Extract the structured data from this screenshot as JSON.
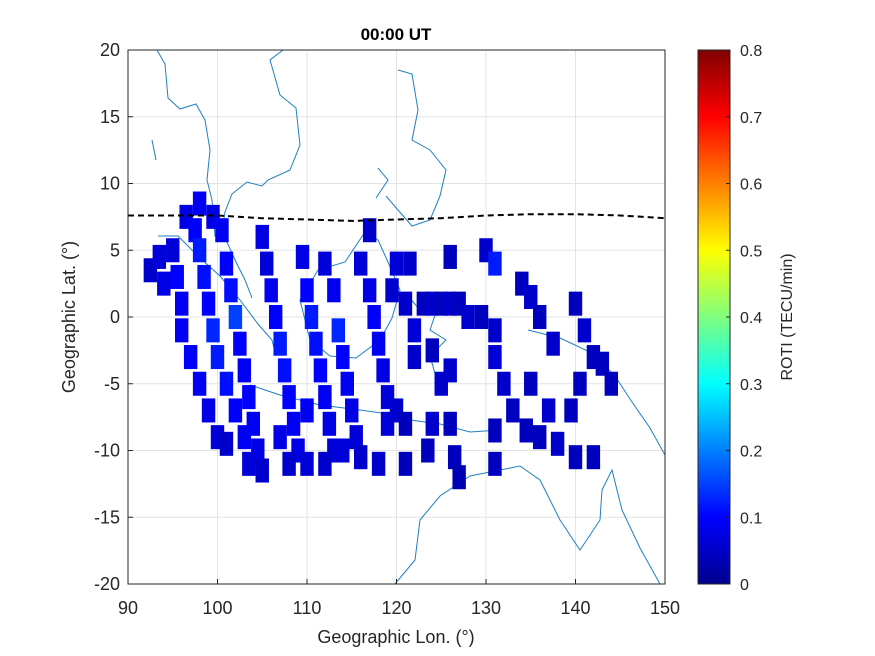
{
  "chart_data": {
    "type": "heatmap",
    "title": "00:00 UT",
    "xlabel": "Geographic Lon. (°)",
    "ylabel": "Geographic Lat. (°)",
    "xlim": [
      90,
      150
    ],
    "ylim": [
      -20,
      20
    ],
    "xticks": [
      "90",
      "100",
      "110",
      "120",
      "130",
      "140",
      "150"
    ],
    "yticks": [
      "20",
      "15",
      "10",
      "5",
      "0",
      "-5",
      "-10",
      "-15",
      "-20"
    ],
    "grid": true,
    "colorbar": {
      "label": "ROTI (TECU/min)",
      "range": [
        0,
        0.8
      ],
      "ticks": [
        "0.8",
        "0.7",
        "0.6",
        "0.5",
        "0.4",
        "0.3",
        "0.2",
        "0.1",
        "0"
      ],
      "colormap": "jet"
    },
    "magnetic_equator": {
      "style": "dashed",
      "color": "#000000",
      "lon": [
        90,
        95,
        100,
        105,
        110,
        115,
        120,
        125,
        130,
        135,
        140,
        145,
        150
      ],
      "lat": [
        7.6,
        7.6,
        7.6,
        7.4,
        7.3,
        7.2,
        7.3,
        7.4,
        7.6,
        7.7,
        7.7,
        7.6,
        7.4
      ]
    },
    "coastline_color": "#1f7fbf",
    "roti_cells": [
      [
        92.5,
        3.5,
        0.06
      ],
      [
        93.5,
        4.5,
        0.07
      ],
      [
        94,
        2.5,
        0.08
      ],
      [
        95,
        5,
        0.07
      ],
      [
        95.5,
        3,
        0.1
      ],
      [
        96,
        1,
        0.09
      ],
      [
        96.5,
        7.5,
        0.08
      ],
      [
        97.5,
        6.5,
        0.1
      ],
      [
        98,
        5,
        0.12
      ],
      [
        98.5,
        3,
        0.11
      ],
      [
        99,
        1,
        0.1
      ],
      [
        99.5,
        -1,
        0.13
      ],
      [
        98,
        8.5,
        0.09
      ],
      [
        99.5,
        7.5,
        0.08
      ],
      [
        100.5,
        6.5,
        0.09
      ],
      [
        101,
        4,
        0.1
      ],
      [
        101.5,
        2,
        0.11
      ],
      [
        102,
        0,
        0.15
      ],
      [
        102.5,
        -2,
        0.1
      ],
      [
        103,
        -4,
        0.09
      ],
      [
        103.5,
        -6,
        0.1
      ],
      [
        104,
        -8,
        0.09
      ],
      [
        104.5,
        -10,
        0.08
      ],
      [
        105,
        6,
        0.08
      ],
      [
        105.5,
        4,
        0.07
      ],
      [
        106,
        2,
        0.09
      ],
      [
        106.5,
        0,
        0.1
      ],
      [
        107,
        -2,
        0.12
      ],
      [
        107.5,
        -4,
        0.11
      ],
      [
        108,
        -6,
        0.1
      ],
      [
        108.5,
        -8,
        0.09
      ],
      [
        109,
        -10,
        0.08
      ],
      [
        100,
        -3,
        0.12
      ],
      [
        101,
        -5,
        0.11
      ],
      [
        102,
        -7,
        0.1
      ],
      [
        103,
        -9,
        0.09
      ],
      [
        103.5,
        -11,
        0.07
      ],
      [
        105,
        -11.5,
        0.06
      ],
      [
        96,
        -1,
        0.09
      ],
      [
        97,
        -3,
        0.1
      ],
      [
        98,
        -5,
        0.09
      ],
      [
        99,
        -7,
        0.08
      ],
      [
        100,
        -9,
        0.07
      ],
      [
        101,
        -9.5,
        0.06
      ],
      [
        109.5,
        4.5,
        0.08
      ],
      [
        110,
        2,
        0.1
      ],
      [
        110.5,
        0,
        0.12
      ],
      [
        111,
        -2,
        0.11
      ],
      [
        111.5,
        -4,
        0.1
      ],
      [
        112,
        -6,
        0.09
      ],
      [
        112.5,
        -8,
        0.08
      ],
      [
        113,
        -10,
        0.07
      ],
      [
        112,
        4,
        0.07
      ],
      [
        113,
        2,
        0.09
      ],
      [
        113.5,
        -1,
        0.13
      ],
      [
        114,
        -3,
        0.1
      ],
      [
        114.5,
        -5,
        0.09
      ],
      [
        115,
        -7,
        0.08
      ],
      [
        115.5,
        -9,
        0.07
      ],
      [
        116,
        -10.5,
        0.06
      ],
      [
        116,
        4,
        0.07
      ],
      [
        117,
        6.5,
        0.06
      ],
      [
        117,
        2,
        0.08
      ],
      [
        117.5,
        0,
        0.1
      ],
      [
        118,
        -2,
        0.09
      ],
      [
        118.5,
        -4,
        0.08
      ],
      [
        119,
        -6,
        0.07
      ],
      [
        119,
        -8,
        0.07
      ],
      [
        120,
        -7,
        0.06
      ],
      [
        121,
        -8,
        0.05
      ],
      [
        119.5,
        2,
        0.06
      ],
      [
        120,
        4,
        0.07
      ],
      [
        121,
        1,
        0.06
      ],
      [
        122,
        -1,
        0.07
      ],
      [
        122,
        -3,
        0.06
      ],
      [
        123,
        1,
        0.05
      ],
      [
        124,
        1,
        0.06
      ],
      [
        125,
        1,
        0.05
      ],
      [
        126,
        1,
        0.06
      ],
      [
        127,
        1,
        0.05
      ],
      [
        124,
        -8,
        0.06
      ],
      [
        123.5,
        -10,
        0.05
      ],
      [
        121,
        -11,
        0.05
      ],
      [
        118,
        -11,
        0.06
      ],
      [
        126,
        -8,
        0.05
      ],
      [
        126.5,
        -10.5,
        0.05
      ],
      [
        127,
        -12,
        0.04
      ],
      [
        121.5,
        4,
        0.06
      ],
      [
        126,
        4.5,
        0.05
      ],
      [
        130,
        5,
        0.06
      ],
      [
        131,
        4,
        0.12
      ],
      [
        128,
        0,
        0.06
      ],
      [
        129.5,
        0,
        0.05
      ],
      [
        131,
        -1,
        0.06
      ],
      [
        131,
        -3,
        0.07
      ],
      [
        132,
        -5,
        0.06
      ],
      [
        133,
        -7,
        0.05
      ],
      [
        131,
        -8.5,
        0.05
      ],
      [
        131,
        -11,
        0.05
      ],
      [
        134,
        2.5,
        0.05
      ],
      [
        135,
        1.5,
        0.06
      ],
      [
        136,
        0,
        0.05
      ],
      [
        137.5,
        -2,
        0.06
      ],
      [
        135,
        -5,
        0.05
      ],
      [
        137,
        -7,
        0.06
      ],
      [
        134.5,
        -8.5,
        0.05
      ],
      [
        136,
        -9,
        0.05
      ],
      [
        138,
        -9.5,
        0.06
      ],
      [
        139.5,
        -7,
        0.05
      ],
      [
        140.5,
        -5,
        0.05
      ],
      [
        141,
        -1,
        0.06
      ],
      [
        142,
        -3,
        0.05
      ],
      [
        143,
        -3.5,
        0.05
      ],
      [
        144,
        -5,
        0.05
      ],
      [
        140,
        -10.5,
        0.05
      ],
      [
        142,
        -10.5,
        0.05
      ],
      [
        140,
        1,
        0.05
      ],
      [
        125,
        -5,
        0.06
      ],
      [
        126,
        -4,
        0.06
      ],
      [
        124,
        -2.5,
        0.05
      ],
      [
        110,
        -7,
        0.09
      ],
      [
        107,
        -9,
        0.08
      ],
      [
        108,
        -11,
        0.06
      ],
      [
        110,
        -11,
        0.07
      ],
      [
        112,
        -11,
        0.06
      ],
      [
        114,
        -10,
        0.07
      ]
    ]
  }
}
